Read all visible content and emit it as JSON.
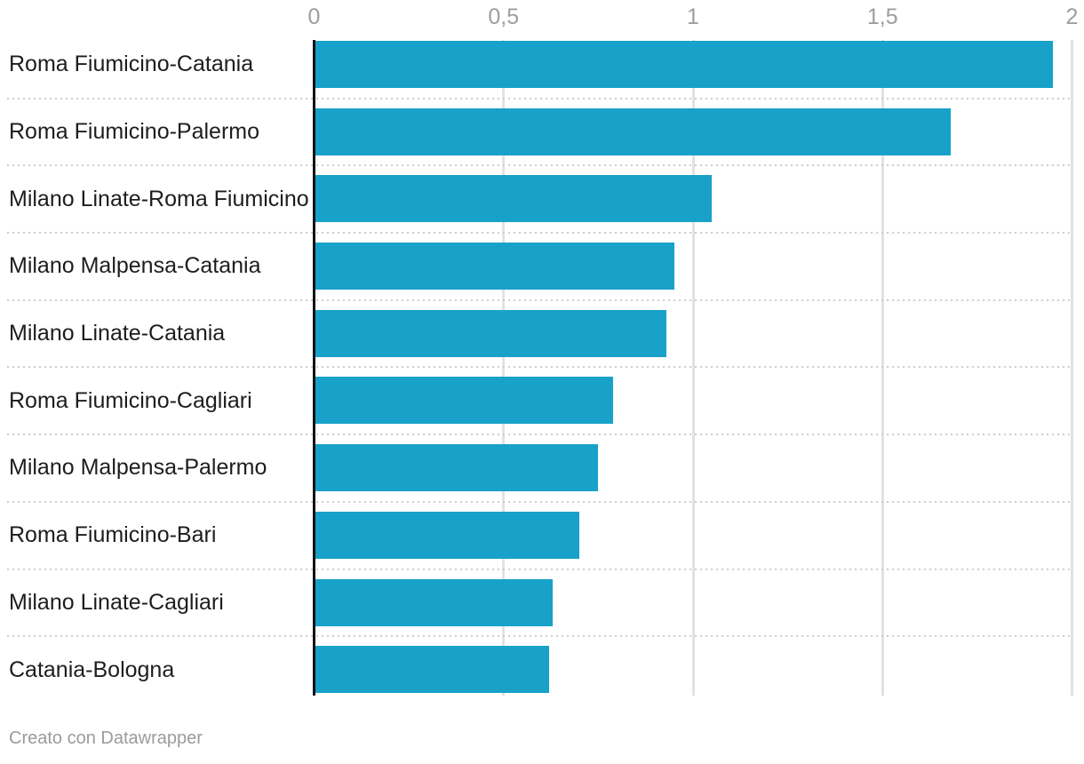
{
  "chart_data": {
    "type": "bar",
    "orientation": "horizontal",
    "categories": [
      "Roma Fiumicino-Catania",
      "Roma Fiumicino-Palermo",
      "Milano Linate-Roma Fiumicino",
      "Milano Malpensa-Catania",
      "Milano Linate-Catania",
      "Roma Fiumicino-Cagliari",
      "Milano Malpensa-Palermo",
      "Roma Fiumicino-Bari",
      "Milano Linate-Cagliari",
      "Catania-Bologna"
    ],
    "values": [
      1.95,
      1.68,
      1.05,
      0.95,
      0.93,
      0.79,
      0.75,
      0.7,
      0.63,
      0.62
    ],
    "xlim": [
      0,
      2
    ],
    "x_ticks": [
      {
        "label": "0",
        "value": 0
      },
      {
        "label": "0,5",
        "value": 0.5
      },
      {
        "label": "1",
        "value": 1
      },
      {
        "label": "1,5",
        "value": 1.5
      },
      {
        "label": "2",
        "value": 2
      }
    ],
    "grid": "vertical-gridlines-on",
    "legend": "none",
    "row_separators": "dotted"
  },
  "footer": {
    "text": "Creato con Datawrapper"
  },
  "colors": {
    "bar": "#18a1c9",
    "tick_label": "#9d9d9d",
    "category_label": "#1d1d1d",
    "zero_line": "#131313",
    "gridline": "#e2e2e2",
    "separator": "#cdcdcd",
    "footer_text": "#9b9b9b",
    "background": "#ffffff"
  }
}
